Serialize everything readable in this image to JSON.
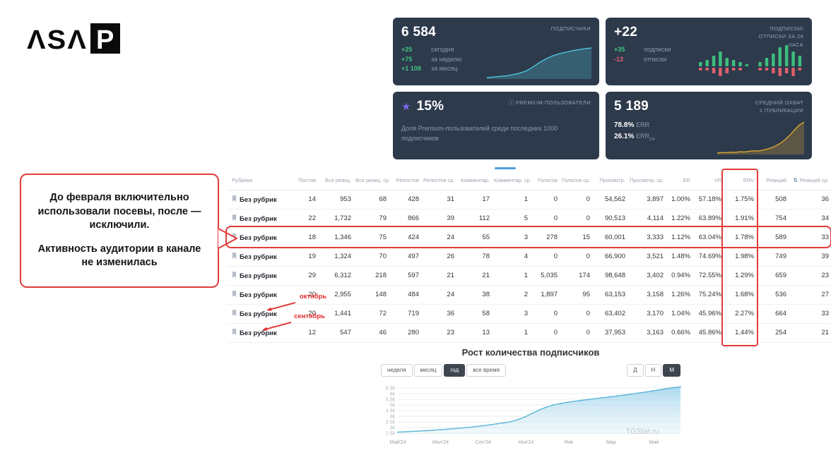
{
  "logo": {
    "part1": "ΛSΛ",
    "part2": "P"
  },
  "icons": {
    "star": "★",
    "info": "ⓘ",
    "sort": "⇅"
  },
  "stat_cards": {
    "subscribers": {
      "value": "6 584",
      "label": "ПОДПИСЧИКИ",
      "deltas": [
        {
          "value": "+25",
          "period": "сегодня"
        },
        {
          "value": "+75",
          "period": "за неделю"
        },
        {
          "value": "+1 108",
          "period": "за месяц"
        }
      ]
    },
    "subs_unsubs": {
      "value": "+22",
      "label": "ПОДПИСКИ/ОТПИСКИ ЗА 24 ЧАСА",
      "subscribed": {
        "value": "+35",
        "period": "подписки"
      },
      "unsubscribed": {
        "value": "-13",
        "period": "отписки"
      }
    },
    "premium": {
      "value": "15%",
      "label": "PREMIUM-ПОЛЬЗОВАТЕЛИ",
      "description": "Доля Premium-пользователей среди последних 1000 подписчиков"
    },
    "reach": {
      "value": "5 189",
      "label": "СРЕДНИЙ ОХВАТ 1 ПУБЛИКАЦИИ",
      "err_value": "78.8%",
      "err_label": "ERR",
      "err24_value": "26.1%",
      "err24_label": "ERR",
      "err24_sub": "24"
    }
  },
  "callout": {
    "paragraph1": "До февраля включительно использовали посевы, после — исключили.",
    "paragraph2": "Активность аудитории в канале не изменилась"
  },
  "annotations": {
    "october": "октябрь",
    "september": "сентябрь"
  },
  "table": {
    "headers": [
      "Рубрика",
      "Постов",
      "Все реакц.",
      "Все реакц. ср.",
      "Репостов",
      "Репостов ср.",
      "Комментар.",
      "Комментар. ср.",
      "Голосов",
      "Голосов ср.",
      "Просмотр.",
      "Просмотр. ср.",
      "ER",
      "VR",
      "ERV",
      "Реакций",
      "Реакций ср."
    ],
    "rows": [
      {
        "rubric": "Без рубрик",
        "cells": [
          "14",
          "953",
          "68",
          "428",
          "31",
          "17",
          "1",
          "0",
          "0",
          "54,562",
          "3,897",
          "1.00%",
          "57.18%",
          "1.75%",
          "508",
          "36"
        ]
      },
      {
        "rubric": "Без рубрик",
        "cells": [
          "22",
          "1,732",
          "79",
          "866",
          "39",
          "112",
          "5",
          "0",
          "0",
          "90,513",
          "4,114",
          "1.22%",
          "63.89%",
          "1.91%",
          "754",
          "34"
        ]
      },
      {
        "rubric": "Без рубрик",
        "cells": [
          "18",
          "1,346",
          "75",
          "424",
          "24",
          "55",
          "3",
          "278",
          "15",
          "60,001",
          "3,333",
          "1.12%",
          "63.04%",
          "1.78%",
          "589",
          "33"
        ],
        "highlighted": true
      },
      {
        "rubric": "Без рубрик",
        "cells": [
          "19",
          "1,324",
          "70",
          "497",
          "26",
          "78",
          "4",
          "0",
          "0",
          "66,900",
          "3,521",
          "1.48%",
          "74.69%",
          "1.98%",
          "749",
          "39"
        ]
      },
      {
        "rubric": "Без рубрик",
        "cells": [
          "29",
          "6,312",
          "218",
          "597",
          "21",
          "21",
          "1",
          "5,035",
          "174",
          "98,648",
          "3,402",
          "0.94%",
          "72.55%",
          "1.29%",
          "659",
          "23"
        ]
      },
      {
        "rubric": "Без рубрик",
        "cells": [
          "20",
          "2,955",
          "148",
          "484",
          "24",
          "38",
          "2",
          "1,897",
          "95",
          "63,153",
          "3,158",
          "1.26%",
          "75.24%",
          "1.68%",
          "536",
          "27"
        ]
      },
      {
        "rubric": "Без рубрик",
        "cells": [
          "20",
          "1,441",
          "72",
          "719",
          "36",
          "58",
          "3",
          "0",
          "0",
          "63,402",
          "3,170",
          "1.04%",
          "45.96%",
          "2.27%",
          "664",
          "33"
        ]
      },
      {
        "rubric": "Без рубрик",
        "cells": [
          "12",
          "547",
          "46",
          "280",
          "23",
          "13",
          "1",
          "0",
          "0",
          "37,953",
          "3,163",
          "0.66%",
          "45.86%",
          "1.44%",
          "254",
          "21"
        ]
      }
    ]
  },
  "growth_chart": {
    "title": "Рост количества подписчиков",
    "range_buttons": [
      "неделя",
      "месяц",
      "год",
      "все время"
    ],
    "active_range": "год",
    "granularity_buttons": [
      "Д",
      "Н",
      "М"
    ],
    "active_granularity": "М",
    "watermark": "TGStat.ru"
  },
  "chart_data": [
    {
      "id": "subscribers_spark",
      "type": "area",
      "color": "#4fc3d9",
      "values": [
        2600,
        2680,
        2760,
        2850,
        3000,
        3200,
        3500,
        4000,
        4600,
        5100,
        5500,
        5800,
        6000,
        6200,
        6350,
        6500,
        6584
      ]
    },
    {
      "id": "subs_unsubs_bars",
      "type": "bar",
      "up_color": "#3dbd7d",
      "down_color": "#e0606b",
      "up": [
        2,
        3,
        5,
        7,
        4,
        3,
        2,
        1,
        0,
        2,
        4,
        6,
        9,
        10,
        7,
        5
      ],
      "down": [
        1,
        1,
        2,
        3,
        2,
        1,
        1,
        0,
        0,
        1,
        1,
        2,
        3,
        2,
        3,
        1
      ]
    },
    {
      "id": "reach_spark",
      "type": "area",
      "color": "#d9a531",
      "values": [
        1000,
        1080,
        1040,
        1120,
        1100,
        1180,
        1150,
        1250,
        1300,
        1280,
        1400,
        1550,
        1750,
        2050,
        2400,
        2900,
        3500,
        4200,
        4800,
        5189
      ]
    },
    {
      "id": "subscribers_growth",
      "type": "area",
      "line_color": "#5fb6d8",
      "title": "Рост количества подписчиков",
      "x_labels": [
        "Май'24",
        "Июл'24",
        "Сен'24",
        "Ноя'24",
        "Янв",
        "Мар",
        "Май"
      ],
      "y_ticks": [
        2500,
        3000,
        3500,
        4000,
        4500,
        5000,
        5500,
        6000,
        6500
      ],
      "y_tick_labels": [
        "2.5k",
        "3k",
        "3.5k",
        "4k",
        "4.5k",
        "5k",
        "5.5k",
        "6k",
        "6.5k"
      ],
      "ylim": [
        2450,
        6800
      ],
      "legend": false,
      "values": [
        2600,
        2630,
        2660,
        2690,
        2730,
        2770,
        2810,
        2860,
        2910,
        2960,
        3020,
        3090,
        3160,
        3240,
        3330,
        3420,
        3520,
        3700,
        3950,
        4250,
        4550,
        4800,
        5000,
        5120,
        5220,
        5320,
        5400,
        5480,
        5550,
        5630,
        5710,
        5790,
        5870,
        5950,
        6040,
        6130,
        6230,
        6330,
        6430,
        6520,
        6584
      ]
    }
  ]
}
